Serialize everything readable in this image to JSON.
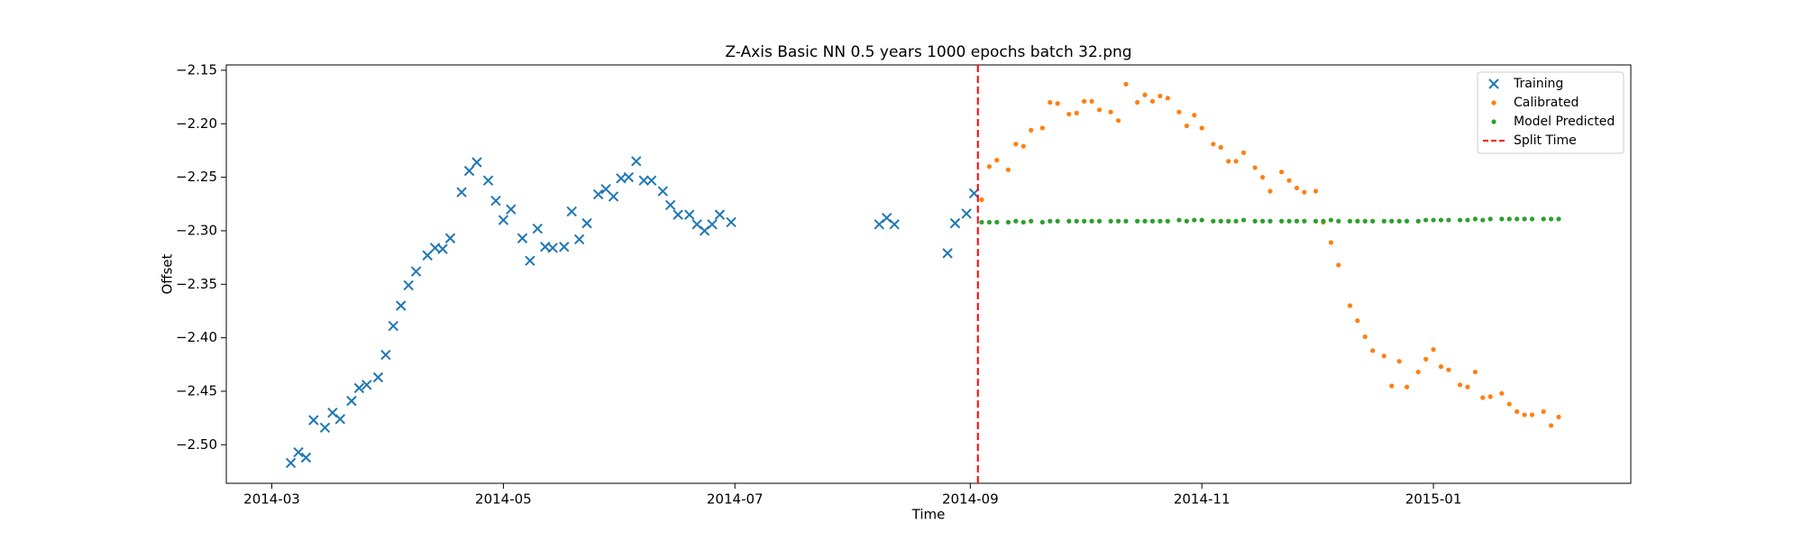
{
  "chart_data": {
    "type": "scatter",
    "title": "Z-Axis Basic NN 0.5 years 1000 epochs batch 32.png",
    "x_label": "Time",
    "y_label": "Offset",
    "xlim": [
      "2014-02-17",
      "2015-02-22"
    ],
    "xticks": [
      {
        "value": "2014-03-01",
        "label": "2014-03"
      },
      {
        "value": "2014-05-01",
        "label": "2014-05"
      },
      {
        "value": "2014-07-01",
        "label": "2014-07"
      },
      {
        "value": "2014-09-01",
        "label": "2014-09"
      },
      {
        "value": "2014-11-01",
        "label": "2014-11"
      },
      {
        "value": "2015-01-01",
        "label": "2015-01"
      }
    ],
    "ylim": [
      -2.536,
      -2.145
    ],
    "yticks": [
      {
        "value": -2.15,
        "label": "−2.15"
      },
      {
        "value": -2.2,
        "label": "−2.20"
      },
      {
        "value": -2.25,
        "label": "−2.25"
      },
      {
        "value": -2.3,
        "label": "−2.30"
      },
      {
        "value": -2.35,
        "label": "−2.35"
      },
      {
        "value": -2.4,
        "label": "−2.40"
      },
      {
        "value": -2.45,
        "label": "−2.45"
      },
      {
        "value": -2.5,
        "label": "−2.50"
      }
    ],
    "legend": "upper right",
    "series": [
      {
        "name": "Training",
        "color": "#1f77b4",
        "marker": "x",
        "x": [
          "2014-03-06",
          "2014-03-08",
          "2014-03-10",
          "2014-03-12",
          "2014-03-15",
          "2014-03-17",
          "2014-03-19",
          "2014-03-22",
          "2014-03-24",
          "2014-03-26",
          "2014-03-29",
          "2014-03-31",
          "2014-04-02",
          "2014-04-04",
          "2014-04-06",
          "2014-04-08",
          "2014-04-11",
          "2014-04-13",
          "2014-04-15",
          "2014-04-17",
          "2014-04-20",
          "2014-04-22",
          "2014-04-24",
          "2014-04-27",
          "2014-04-29",
          "2014-05-01",
          "2014-05-03",
          "2014-05-06",
          "2014-05-08",
          "2014-05-10",
          "2014-05-12",
          "2014-05-14",
          "2014-05-17",
          "2014-05-19",
          "2014-05-21",
          "2014-05-23",
          "2014-05-26",
          "2014-05-28",
          "2014-05-30",
          "2014-06-01",
          "2014-06-03",
          "2014-06-05",
          "2014-06-07",
          "2014-06-09",
          "2014-06-12",
          "2014-06-14",
          "2014-06-16",
          "2014-06-19",
          "2014-06-21",
          "2014-06-23",
          "2014-06-25",
          "2014-06-27",
          "2014-06-30",
          "2014-08-08",
          "2014-08-10",
          "2014-08-12",
          "2014-08-26",
          "2014-08-28",
          "2014-08-31",
          "2014-09-02"
        ],
        "values": [
          -2.517,
          -2.507,
          -2.512,
          -2.477,
          -2.484,
          -2.47,
          -2.476,
          -2.459,
          -2.447,
          -2.444,
          -2.437,
          -2.416,
          -2.389,
          -2.37,
          -2.351,
          -2.338,
          -2.323,
          -2.316,
          -2.317,
          -2.307,
          -2.264,
          -2.244,
          -2.236,
          -2.253,
          -2.272,
          -2.29,
          -2.28,
          -2.307,
          -2.328,
          -2.298,
          -2.315,
          -2.316,
          -2.315,
          -2.282,
          -2.308,
          -2.293,
          -2.266,
          -2.261,
          -2.268,
          -2.251,
          -2.25,
          -2.235,
          -2.253,
          -2.253,
          -2.263,
          -2.276,
          -2.285,
          -2.285,
          -2.294,
          -2.3,
          -2.294,
          -2.285,
          -2.292,
          -2.294,
          -2.288,
          -2.294,
          -2.321,
          -2.293,
          -2.284,
          -2.265
        ]
      },
      {
        "name": "Calibrated",
        "color": "#ff7f0e",
        "marker": "dot",
        "x": [
          "2014-09-04",
          "2014-09-06",
          "2014-09-08",
          "2014-09-11",
          "2014-09-13",
          "2014-09-15",
          "2014-09-17",
          "2014-09-20",
          "2014-09-22",
          "2014-09-24",
          "2014-09-27",
          "2014-09-29",
          "2014-10-01",
          "2014-10-03",
          "2014-10-05",
          "2014-10-08",
          "2014-10-10",
          "2014-10-12",
          "2014-10-15",
          "2014-10-17",
          "2014-10-19",
          "2014-10-21",
          "2014-10-23",
          "2014-10-26",
          "2014-10-28",
          "2014-10-30",
          "2014-11-01",
          "2014-11-04",
          "2014-11-06",
          "2014-11-08",
          "2014-11-10",
          "2014-11-12",
          "2014-11-15",
          "2014-11-17",
          "2014-11-19",
          "2014-11-22",
          "2014-11-24",
          "2014-11-26",
          "2014-11-28",
          "2014-12-01",
          "2014-12-03",
          "2014-12-05",
          "2014-12-07",
          "2014-12-10",
          "2014-12-12",
          "2014-12-14",
          "2014-12-16",
          "2014-12-19",
          "2014-12-21",
          "2014-12-23",
          "2014-12-25",
          "2014-12-28",
          "2014-12-30",
          "2015-01-01",
          "2015-01-03",
          "2015-01-05",
          "2015-01-08",
          "2015-01-10",
          "2015-01-12",
          "2015-01-14",
          "2015-01-16",
          "2015-01-19",
          "2015-01-21",
          "2015-01-23",
          "2015-01-25",
          "2015-01-27",
          "2015-01-30",
          "2015-02-01",
          "2015-02-03"
        ],
        "values": [
          -2.271,
          -2.24,
          -2.234,
          -2.243,
          -2.219,
          -2.221,
          -2.206,
          -2.204,
          -2.18,
          -2.181,
          -2.191,
          -2.19,
          -2.179,
          -2.179,
          -2.187,
          -2.189,
          -2.197,
          -2.163,
          -2.18,
          -2.173,
          -2.179,
          -2.174,
          -2.176,
          -2.189,
          -2.202,
          -2.192,
          -2.204,
          -2.219,
          -2.222,
          -2.235,
          -2.235,
          -2.227,
          -2.241,
          -2.25,
          -2.263,
          -2.245,
          -2.253,
          -2.26,
          -2.264,
          -2.263,
          -2.292,
          -2.311,
          -2.332,
          -2.37,
          -2.384,
          -2.399,
          -2.412,
          -2.417,
          -2.445,
          -2.422,
          -2.446,
          -2.432,
          -2.42,
          -2.411,
          -2.427,
          -2.43,
          -2.444,
          -2.446,
          -2.432,
          -2.456,
          -2.455,
          -2.452,
          -2.462,
          -2.469,
          -2.472,
          -2.472,
          -2.469,
          -2.482,
          -2.474
        ]
      },
      {
        "name": "Model Predicted",
        "color": "#2ca02c",
        "marker": "dot",
        "x": [
          "2014-09-04",
          "2014-09-06",
          "2014-09-08",
          "2014-09-11",
          "2014-09-13",
          "2014-09-15",
          "2014-09-17",
          "2014-09-20",
          "2014-09-22",
          "2014-09-24",
          "2014-09-27",
          "2014-09-29",
          "2014-10-01",
          "2014-10-03",
          "2014-10-05",
          "2014-10-08",
          "2014-10-10",
          "2014-10-12",
          "2014-10-15",
          "2014-10-17",
          "2014-10-19",
          "2014-10-21",
          "2014-10-23",
          "2014-10-26",
          "2014-10-28",
          "2014-10-30",
          "2014-11-01",
          "2014-11-04",
          "2014-11-06",
          "2014-11-08",
          "2014-11-10",
          "2014-11-12",
          "2014-11-15",
          "2014-11-17",
          "2014-11-19",
          "2014-11-22",
          "2014-11-24",
          "2014-11-26",
          "2014-11-28",
          "2014-12-01",
          "2014-12-03",
          "2014-12-05",
          "2014-12-07",
          "2014-12-10",
          "2014-12-12",
          "2014-12-14",
          "2014-12-16",
          "2014-12-19",
          "2014-12-21",
          "2014-12-23",
          "2014-12-25",
          "2014-12-28",
          "2014-12-30",
          "2015-01-01",
          "2015-01-03",
          "2015-01-05",
          "2015-01-08",
          "2015-01-10",
          "2015-01-12",
          "2015-01-14",
          "2015-01-16",
          "2015-01-19",
          "2015-01-21",
          "2015-01-23",
          "2015-01-25",
          "2015-01-27",
          "2015-01-30",
          "2015-02-01",
          "2015-02-03"
        ],
        "values": [
          -2.292,
          -2.292,
          -2.292,
          -2.292,
          -2.291,
          -2.292,
          -2.291,
          -2.292,
          -2.291,
          -2.291,
          -2.291,
          -2.291,
          -2.291,
          -2.291,
          -2.291,
          -2.291,
          -2.291,
          -2.291,
          -2.291,
          -2.291,
          -2.291,
          -2.291,
          -2.291,
          -2.29,
          -2.291,
          -2.29,
          -2.29,
          -2.291,
          -2.291,
          -2.291,
          -2.291,
          -2.29,
          -2.291,
          -2.291,
          -2.291,
          -2.291,
          -2.291,
          -2.291,
          -2.291,
          -2.291,
          -2.291,
          -2.29,
          -2.291,
          -2.291,
          -2.291,
          -2.291,
          -2.291,
          -2.291,
          -2.291,
          -2.291,
          -2.291,
          -2.291,
          -2.29,
          -2.29,
          -2.29,
          -2.29,
          -2.29,
          -2.29,
          -2.289,
          -2.29,
          -2.289,
          -2.289,
          -2.289,
          -2.289,
          -2.289,
          -2.289,
          -2.289,
          -2.289,
          -2.289
        ]
      }
    ],
    "split_time": {
      "name": "Split Time",
      "x": "2014-09-03",
      "color": "red"
    }
  }
}
